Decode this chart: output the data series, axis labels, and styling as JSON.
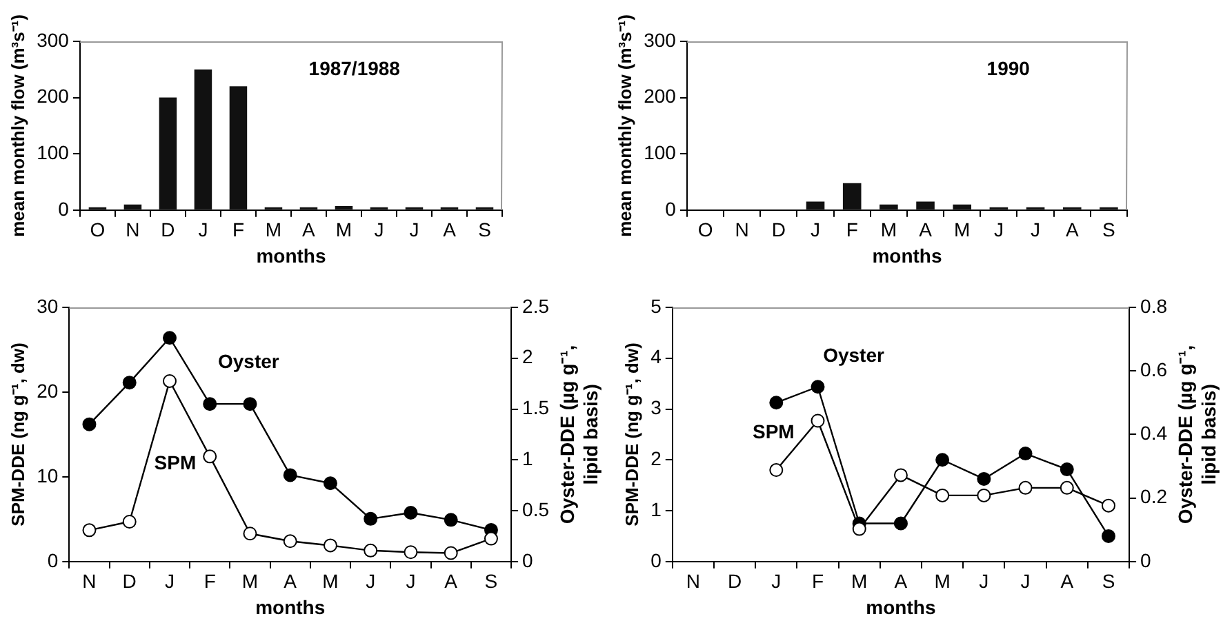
{
  "chart_data": [
    {
      "type": "bar",
      "title": "1987/1988",
      "categories": [
        "O",
        "N",
        "D",
        "J",
        "F",
        "M",
        "A",
        "M",
        "J",
        "J",
        "A",
        "S"
      ],
      "values": [
        5,
        10,
        200,
        250,
        220,
        5,
        5,
        7,
        5,
        5,
        5,
        5
      ],
      "color": "#111111",
      "xlabel": "months",
      "ylabel": "mean monthly flow (m³s⁻¹)",
      "ylim": [
        0,
        300
      ],
      "yticks": [
        0,
        100,
        200,
        300
      ]
    },
    {
      "type": "bar",
      "title": "1990",
      "categories": [
        "O",
        "N",
        "D",
        "J",
        "F",
        "M",
        "A",
        "M",
        "J",
        "J",
        "A",
        "S"
      ],
      "values": [
        null,
        null,
        null,
        15,
        48,
        10,
        15,
        10,
        5,
        5,
        5,
        5
      ],
      "color": "#111111",
      "xlabel": "months",
      "ylabel": "mean monthly flow (m³s⁻¹)",
      "ylim": [
        0,
        300
      ],
      "yticks": [
        0,
        100,
        200,
        300
      ]
    },
    {
      "type": "line",
      "categories": [
        "N",
        "D",
        "J",
        "F",
        "M",
        "A",
        "M",
        "J",
        "J",
        "A",
        "S"
      ],
      "xlabel": "months",
      "ylabel": "SPM-DDE (ng g⁻¹, dw)",
      "y2label": "Oyster-DDE (µg g⁻¹, lipid basis)",
      "ylim": [
        0,
        30
      ],
      "yticks": [
        0,
        10,
        20,
        30
      ],
      "y2lim": [
        0,
        2.5
      ],
      "y2ticks": [
        0,
        0.5,
        1,
        1.5,
        2,
        2.5
      ],
      "marker": "circle",
      "series": [
        {
          "name": "Oyster",
          "color": "#000000",
          "axis": "y2",
          "values": [
            1.35,
            1.76,
            2.2,
            1.55,
            1.55,
            0.85,
            0.77,
            0.42,
            0.48,
            0.41,
            0.31
          ]
        },
        {
          "name": "SPM",
          "color": "#ffffff",
          "values": [
            3.7,
            4.7,
            21.3,
            12.4,
            3.3,
            2.4,
            1.9,
            1.3,
            1.1,
            1.0,
            2.7
          ]
        }
      ]
    },
    {
      "type": "line",
      "categories": [
        "N",
        "D",
        "J",
        "F",
        "M",
        "A",
        "M",
        "J",
        "J",
        "A",
        "S"
      ],
      "xlabel": "months",
      "ylabel": "SPM-DDE (ng g⁻¹, dw)",
      "y2label": "Oyster-DDE (µg g⁻¹, lipid basis)",
      "ylim": [
        0,
        5
      ],
      "yticks": [
        0,
        1,
        2,
        3,
        4,
        5
      ],
      "y2lim": [
        0,
        0.8
      ],
      "y2ticks": [
        0,
        0.2,
        0.4,
        0.6,
        0.8
      ],
      "marker": "circle",
      "series": [
        {
          "name": "Oyster",
          "color": "#000000",
          "axis": "y2",
          "values": [
            null,
            null,
            0.5,
            0.55,
            0.12,
            0.12,
            0.32,
            0.26,
            0.34,
            0.29,
            0.08
          ]
        },
        {
          "name": "SPM",
          "color": "#ffffff",
          "values": [
            null,
            null,
            1.8,
            2.77,
            0.64,
            1.7,
            1.3,
            1.3,
            1.45,
            1.45,
            1.1
          ]
        }
      ]
    }
  ]
}
